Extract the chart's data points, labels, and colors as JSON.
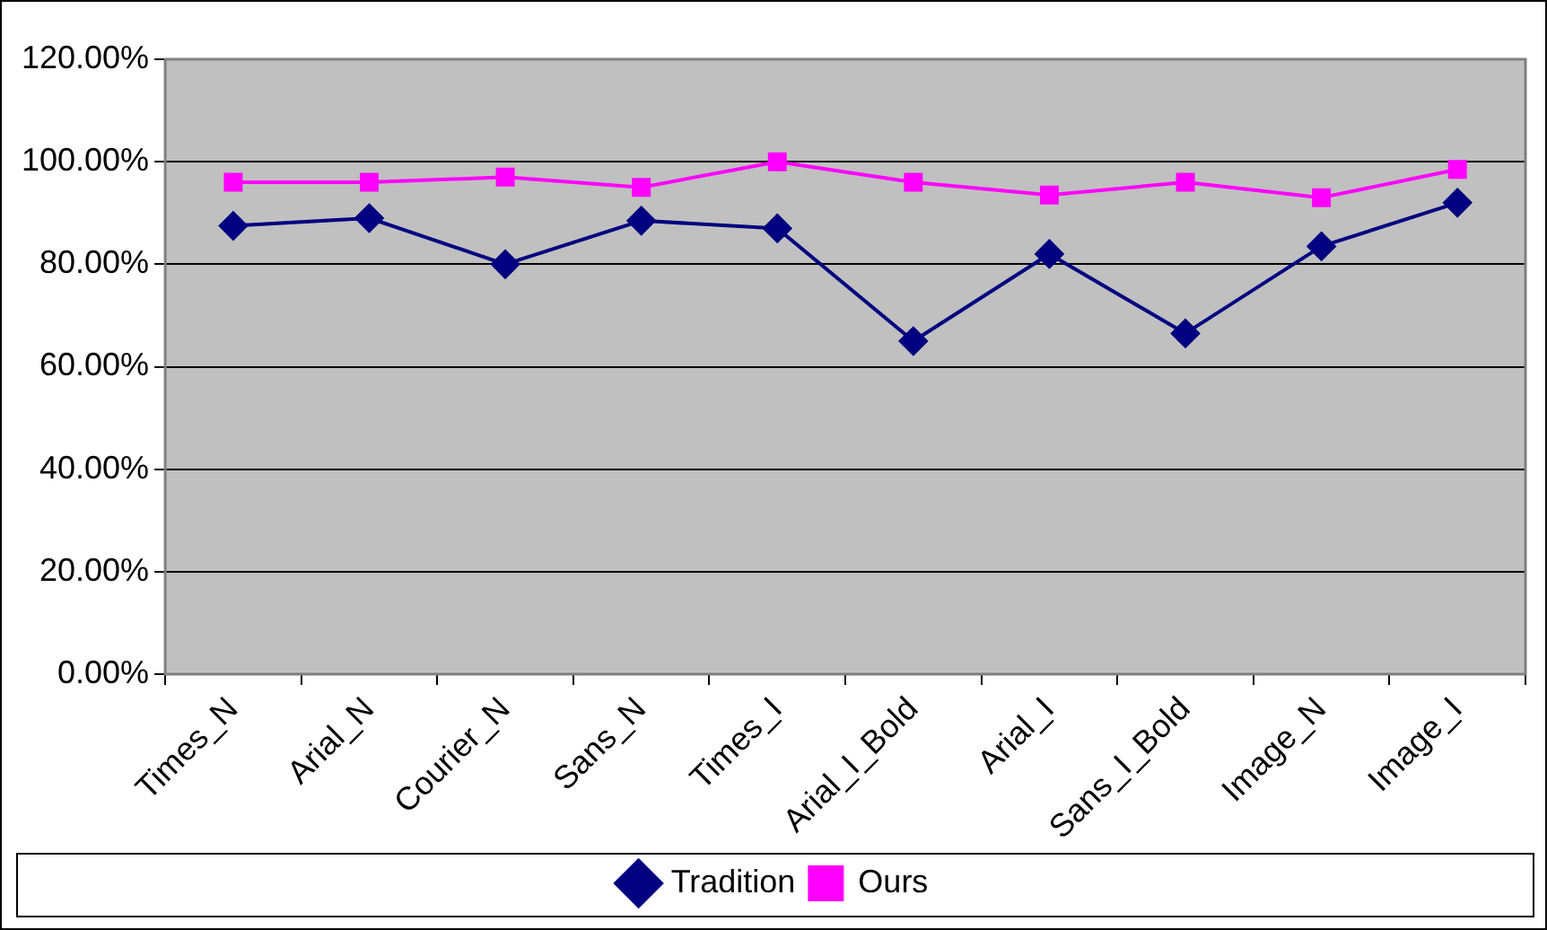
{
  "chart_data": {
    "type": "line",
    "categories": [
      "Times_N",
      "Arial_N",
      "Courier_N",
      "Sans_N",
      "Times_I",
      "Arial_I_Bold",
      "Arial_I",
      "Sans_I_Bold",
      "Image_N",
      "Image_I"
    ],
    "series": [
      {
        "name": "Tradition",
        "color": "#000080",
        "marker": "diamond",
        "values": [
          87.5,
          89,
          80,
          88.5,
          87,
          65,
          82,
          66.5,
          83.5,
          92
        ]
      },
      {
        "name": "Ours",
        "color": "#ff00ff",
        "marker": "square",
        "values": [
          96,
          96,
          97,
          95,
          100,
          96,
          93.5,
          96,
          93,
          98.5
        ]
      }
    ],
    "ylim": [
      0,
      120
    ],
    "yticks": [
      {
        "value": 0,
        "label": "0.00%"
      },
      {
        "value": 20,
        "label": "20.00%"
      },
      {
        "value": 40,
        "label": "40.00%"
      },
      {
        "value": 60,
        "label": "60.00%"
      },
      {
        "value": 80,
        "label": "80.00%"
      },
      {
        "value": 100,
        "label": "100.00%"
      },
      {
        "value": 120,
        "label": "120.00%"
      }
    ],
    "grid": "y",
    "legend": "bottom"
  }
}
